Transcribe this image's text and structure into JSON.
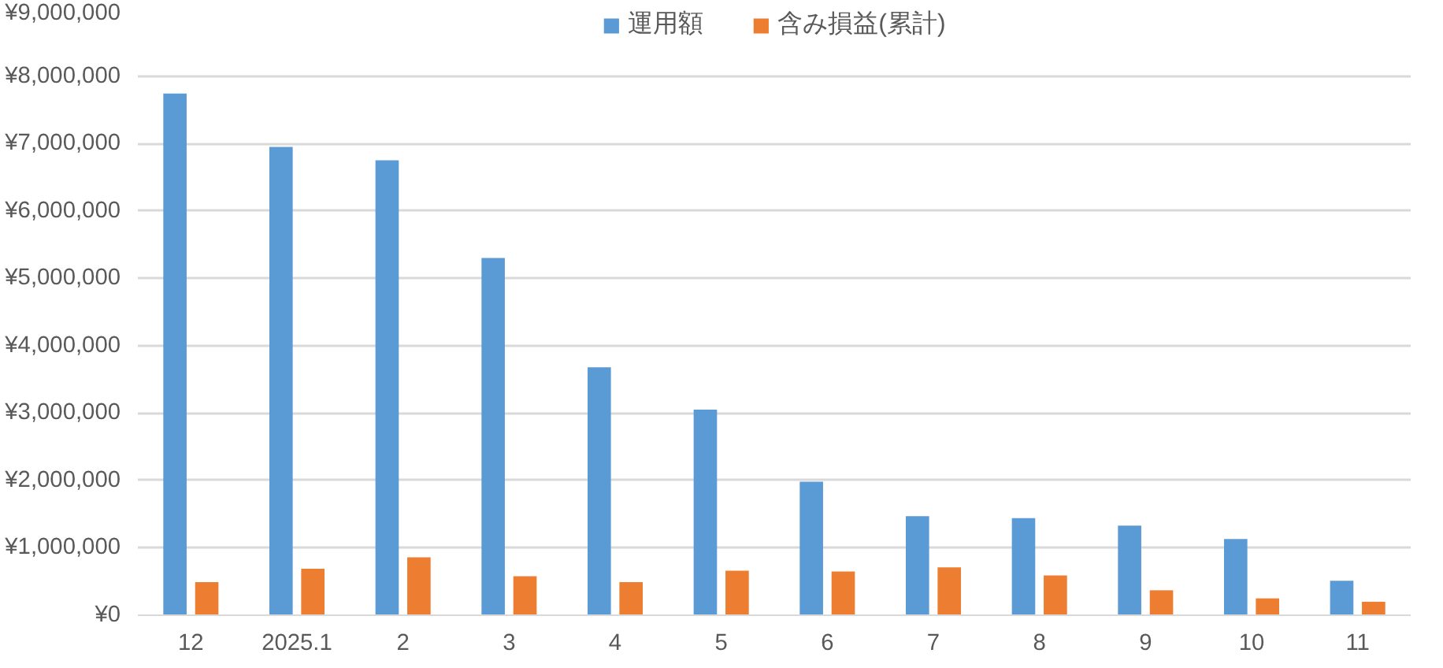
{
  "chart_data": {
    "type": "bar",
    "categories": [
      "12",
      "2025.1",
      "2",
      "3",
      "4",
      "5",
      "6",
      "7",
      "8",
      "9",
      "10",
      "11"
    ],
    "series": [
      {
        "name": "運用額",
        "color": "#5b9bd5",
        "values": [
          7740000,
          6950000,
          6750000,
          5300000,
          3680000,
          3050000,
          1980000,
          1470000,
          1440000,
          1330000,
          1130000,
          510000
        ]
      },
      {
        "name": "含み損益(累計)",
        "color": "#ed7d31",
        "values": [
          490000,
          690000,
          860000,
          580000,
          490000,
          660000,
          650000,
          710000,
          590000,
          370000,
          250000,
          200000
        ]
      }
    ],
    "ylim": [
      0,
      9000000
    ],
    "yticks": [
      {
        "value": 0,
        "label": "¥0"
      },
      {
        "value": 1000000,
        "label": "¥1,000,000"
      },
      {
        "value": 2000000,
        "label": "¥2,000,000"
      },
      {
        "value": 3000000,
        "label": "¥3,000,000"
      },
      {
        "value": 4000000,
        "label": "¥4,000,000"
      },
      {
        "value": 5000000,
        "label": "¥5,000,000"
      },
      {
        "value": 6000000,
        "label": "¥6,000,000"
      },
      {
        "value": 7000000,
        "label": "¥7,000,000"
      },
      {
        "value": 8000000,
        "label": "¥8,000,000"
      },
      {
        "value": 9000000,
        "label": "¥9,000,000"
      }
    ],
    "grid": "y",
    "legend": "top"
  }
}
